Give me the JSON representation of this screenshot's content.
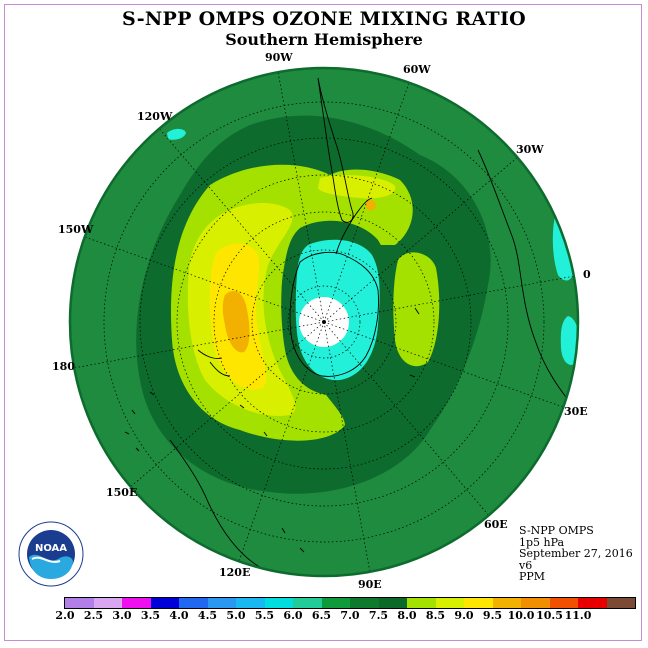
{
  "title": "S-NPP OMPS OZONE MIXING RATIO",
  "subtitle": "Southern Hemisphere",
  "longitude_labels": [
    "90W",
    "60W",
    "30W",
    "0",
    "30E",
    "60E",
    "90E",
    "120E",
    "150E",
    "180",
    "150W",
    "120W"
  ],
  "info": {
    "instrument": "S-NPP OMPS",
    "level": "1p5 hPa",
    "date": "September 27, 2016",
    "version": "v6",
    "units": "PPM"
  },
  "logo": {
    "text": "NOAA",
    "ring_text": "NATIONAL OCEANIC AND ATMOSPHERIC ADMINISTRATION · U.S. DEPARTMENT OF COMMERCE"
  },
  "colorbar": {
    "ticks": [
      "2.0",
      "2.5",
      "3.0",
      "3.5",
      "4.0",
      "4.5",
      "5.0",
      "5.5",
      "6.0",
      "6.5",
      "7.0",
      "7.5",
      "8.0",
      "8.5",
      "9.0",
      "9.5",
      "10.0",
      "10.5",
      "11.0"
    ],
    "colors": [
      "#b27fe8",
      "#d9a6f2",
      "#ee10ee",
      "#0000d8",
      "#2068f0",
      "#2a98f0",
      "#1ab8f0",
      "#00ddde",
      "#22cc99",
      "#0f9a3c",
      "#0e7a2e",
      "#0b6a28",
      "#a4e000",
      "#d8f000",
      "#ffe600",
      "#f2b000",
      "#f09000",
      "#f05000",
      "#e80000",
      "#7a4a34"
    ]
  },
  "map_colors": {
    "background_field": "#1e8b3e",
    "dark_green": "#0e6b2e",
    "light_green": "#a4e000",
    "yellow_green": "#d8f000",
    "yellow": "#ffe600",
    "orange": "#f2b000",
    "cyan": "#22f0d8",
    "white": "#ffffff",
    "grid": "#000000"
  }
}
